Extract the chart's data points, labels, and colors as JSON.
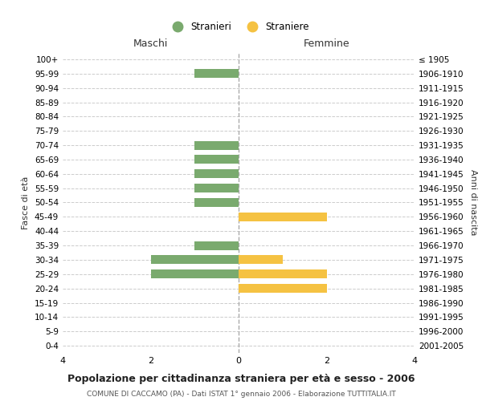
{
  "age_groups": [
    "100+",
    "95-99",
    "90-94",
    "85-89",
    "80-84",
    "75-79",
    "70-74",
    "65-69",
    "60-64",
    "55-59",
    "50-54",
    "45-49",
    "40-44",
    "35-39",
    "30-34",
    "25-29",
    "20-24",
    "15-19",
    "10-14",
    "5-9",
    "0-4"
  ],
  "birth_years": [
    "≤ 1905",
    "1906-1910",
    "1911-1915",
    "1916-1920",
    "1921-1925",
    "1926-1930",
    "1931-1935",
    "1936-1940",
    "1941-1945",
    "1946-1950",
    "1951-1955",
    "1956-1960",
    "1961-1965",
    "1966-1970",
    "1971-1975",
    "1976-1980",
    "1981-1985",
    "1986-1990",
    "1991-1995",
    "1996-2000",
    "2001-2005"
  ],
  "maschi": [
    0,
    -1,
    0,
    0,
    0,
    0,
    -1,
    -1,
    -1,
    -1,
    -1,
    0,
    0,
    -1,
    -2,
    -2,
    0,
    0,
    0,
    0,
    0
  ],
  "femmine": [
    0,
    0,
    0,
    0,
    0,
    0,
    0,
    0,
    0,
    0,
    0,
    2,
    0,
    0,
    1,
    2,
    2,
    0,
    0,
    0,
    0
  ],
  "maschi_color": "#7aaa6e",
  "femmine_color": "#f5c242",
  "maschi_label": "Stranieri",
  "femmine_label": "Straniere",
  "xlabel_left": "Maschi",
  "xlabel_right": "Femmine",
  "ylabel_left": "Fasce di età",
  "ylabel_right": "Anni di nascita",
  "title": "Popolazione per cittadinanza straniera per età e sesso - 2006",
  "subtitle": "COMUNE DI CACCAMO (PA) - Dati ISTAT 1° gennaio 2006 - Elaborazione TUTTITALIA.IT",
  "xlim": [
    -4,
    4
  ],
  "background_color": "#ffffff",
  "grid_color": "#cccccc"
}
